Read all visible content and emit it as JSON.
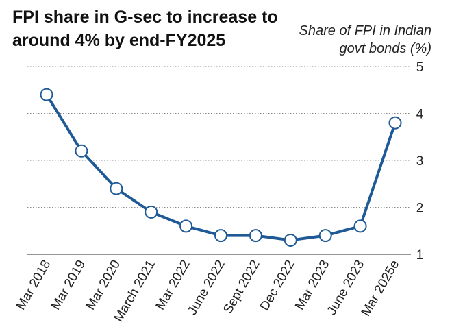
{
  "chart_data": {
    "type": "line",
    "title": "FPI share in G-sec to increase to around 4% by end-FY2025",
    "ylabel": "Share of FPI in Indian govt bonds (%)",
    "xlabel": "",
    "categories": [
      "Mar 2018",
      "Mar 2019",
      "Mar 2020",
      "March 2021",
      "Mar 2022",
      "June 2022",
      "Sept 2022",
      "Dec 2022",
      "Mar 2023",
      "June 2023",
      "Mar 2025e"
    ],
    "series": [
      {
        "values": [
          4.4,
          3.2,
          2.4,
          1.9,
          1.6,
          1.4,
          1.4,
          1.3,
          1.4,
          1.6,
          3.8
        ]
      }
    ],
    "ylim": [
      1,
      5
    ],
    "yticks": [
      "1",
      "2",
      "3",
      "4",
      "5"
    ],
    "y_axis_side": "right",
    "grid": "dotted horizontal",
    "colors": {
      "line": "#1f5a96",
      "marker_fill": "#ffffff",
      "grid": "#888888",
      "text": "#222222"
    }
  }
}
